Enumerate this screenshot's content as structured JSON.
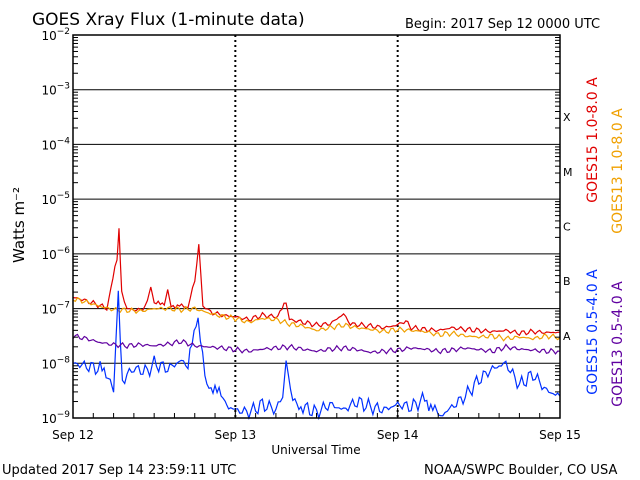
{
  "header": {
    "title": "GOES Xray Flux (1-minute data)",
    "begin": "Begin:  2017 Sep 12 0000 UTC"
  },
  "footer": {
    "updated": "Updated 2017 Sep 14 23:59:11 UTC",
    "source": "NOAA/SWPC Boulder, CO USA"
  },
  "chart_data": {
    "type": "line",
    "title": "GOES Xray Flux (1-minute data)",
    "xlabel": "Universal Time",
    "ylabel": "Watts m⁻²",
    "y_scale": "log",
    "ylim": [
      1e-09,
      0.01
    ],
    "xlim_hours": [
      0,
      72
    ],
    "x_ticks": [
      {
        "hour": 0,
        "label": "Sep 12"
      },
      {
        "hour": 24,
        "label": "Sep 13"
      },
      {
        "hour": 48,
        "label": "Sep 14"
      },
      {
        "hour": 72,
        "label": "Sep 15"
      }
    ],
    "y_ticks": [
      {
        "exp": -2,
        "label": "10-2"
      },
      {
        "exp": -3,
        "label": "10-3"
      },
      {
        "exp": -4,
        "label": "10-4"
      },
      {
        "exp": -5,
        "label": "10-5"
      },
      {
        "exp": -6,
        "label": "10-6"
      },
      {
        "exp": -7,
        "label": "10-7"
      },
      {
        "exp": -8,
        "label": "10-8"
      },
      {
        "exp": -9,
        "label": "10-9"
      }
    ],
    "flare_classes": [
      {
        "label": "X",
        "exp": -3.5
      },
      {
        "label": "M",
        "exp": -4.5
      },
      {
        "label": "C",
        "exp": -5.5
      },
      {
        "label": "B",
        "exp": -6.5
      },
      {
        "label": "A",
        "exp": -7.5
      }
    ],
    "legend": {
      "placement": "right"
    },
    "series": [
      {
        "name": "GOES15 1.0-8.0 A",
        "color": "#e00000",
        "points": [
          [
            0,
            -6.8
          ],
          [
            1,
            -6.82
          ],
          [
            2,
            -6.86
          ],
          [
            3,
            -6.9
          ],
          [
            4,
            -6.95
          ],
          [
            5,
            -6.99
          ],
          [
            6.5,
            -6.1
          ],
          [
            6.8,
            -5.55
          ],
          [
            7.2,
            -6.7
          ],
          [
            8,
            -7.0
          ],
          [
            9,
            -7.02
          ],
          [
            10,
            -7.03
          ],
          [
            11,
            -6.9
          ],
          [
            11.5,
            -6.65
          ],
          [
            12,
            -6.92
          ],
          [
            13.5,
            -6.9
          ],
          [
            14,
            -6.62
          ],
          [
            14.5,
            -6.95
          ],
          [
            17,
            -6.96
          ],
          [
            18,
            -6.5
          ],
          [
            18.6,
            -5.8
          ],
          [
            19.2,
            -6.95
          ],
          [
            20,
            -7.05
          ],
          [
            22,
            -7.12
          ],
          [
            24,
            -7.15
          ],
          [
            26,
            -7.2
          ],
          [
            28,
            -7.12
          ],
          [
            30,
            -7.15
          ],
          [
            31.5,
            -6.9
          ],
          [
            32,
            -7.2
          ],
          [
            34,
            -7.25
          ],
          [
            36,
            -7.3
          ],
          [
            38,
            -7.28
          ],
          [
            40,
            -7.1
          ],
          [
            41,
            -7.28
          ],
          [
            44,
            -7.32
          ],
          [
            46,
            -7.35
          ],
          [
            48,
            -7.3
          ],
          [
            49.5,
            -7.2
          ],
          [
            50,
            -7.35
          ],
          [
            52,
            -7.38
          ],
          [
            54,
            -7.4
          ],
          [
            56,
            -7.35
          ],
          [
            58,
            -7.38
          ],
          [
            60,
            -7.4
          ],
          [
            62,
            -7.42
          ],
          [
            64,
            -7.4
          ],
          [
            66,
            -7.45
          ],
          [
            68,
            -7.42
          ],
          [
            70,
            -7.44
          ],
          [
            72,
            -7.43
          ]
        ]
      },
      {
        "name": "GOES13 1.0-8.0 A",
        "color": "#f0a000",
        "points": [
          [
            0,
            -6.82
          ],
          [
            2,
            -6.88
          ],
          [
            4,
            -6.96
          ],
          [
            6,
            -7.02
          ],
          [
            8,
            -7.03
          ],
          [
            10,
            -7.05
          ],
          [
            12,
            -7.0
          ],
          [
            14,
            -7.0
          ],
          [
            16,
            -7.02
          ],
          [
            18,
            -7.0
          ],
          [
            20,
            -7.08
          ],
          [
            22,
            -7.14
          ],
          [
            24,
            -7.18
          ],
          [
            26,
            -7.25
          ],
          [
            28,
            -7.18
          ],
          [
            30,
            -7.2
          ],
          [
            32,
            -7.28
          ],
          [
            34,
            -7.32
          ],
          [
            36,
            -7.4
          ],
          [
            38,
            -7.35
          ],
          [
            40,
            -7.3
          ],
          [
            42,
            -7.35
          ],
          [
            44,
            -7.38
          ],
          [
            46,
            -7.42
          ],
          [
            48,
            -7.38
          ],
          [
            50,
            -7.4
          ],
          [
            52,
            -7.42
          ],
          [
            54,
            -7.48
          ],
          [
            56,
            -7.45
          ],
          [
            58,
            -7.5
          ],
          [
            60,
            -7.52
          ],
          [
            62,
            -7.5
          ],
          [
            64,
            -7.55
          ],
          [
            66,
            -7.52
          ],
          [
            68,
            -7.55
          ],
          [
            70,
            -7.5
          ],
          [
            72,
            -7.53
          ]
        ]
      },
      {
        "name": "GOES15 0.5-4.0 A",
        "color": "#0030ff",
        "points": [
          [
            0,
            -8.0
          ],
          [
            2,
            -8.05
          ],
          [
            4,
            -8.1
          ],
          [
            5.5,
            -8.25
          ],
          [
            6,
            -8.45
          ],
          [
            6.7,
            -6.8
          ],
          [
            7.3,
            -8.3
          ],
          [
            9,
            -8.1
          ],
          [
            11,
            -8.15
          ],
          [
            12,
            -8.0
          ],
          [
            14,
            -8.1
          ],
          [
            16,
            -7.95
          ],
          [
            17,
            -8.05
          ],
          [
            18.5,
            -7.1
          ],
          [
            19.5,
            -8.3
          ],
          [
            21,
            -8.5
          ],
          [
            22.5,
            -8.65
          ],
          [
            23,
            -8.8
          ],
          [
            24,
            -8.85
          ],
          [
            26,
            -8.9
          ],
          [
            28,
            -8.75
          ],
          [
            30,
            -8.85
          ],
          [
            31,
            -8.6
          ],
          [
            31.5,
            -7.95
          ],
          [
            32.5,
            -8.7
          ],
          [
            34,
            -8.8
          ],
          [
            36,
            -8.9
          ],
          [
            38,
            -8.75
          ],
          [
            40,
            -8.85
          ],
          [
            42,
            -8.7
          ],
          [
            44,
            -8.8
          ],
          [
            46,
            -8.85
          ],
          [
            48,
            -8.75
          ],
          [
            50,
            -8.8
          ],
          [
            52,
            -8.65
          ],
          [
            53.5,
            -8.85
          ],
          [
            54,
            -9.0
          ],
          [
            56,
            -8.8
          ],
          [
            58,
            -8.6
          ],
          [
            60,
            -8.3
          ],
          [
            62,
            -8.1
          ],
          [
            64,
            -8.0
          ],
          [
            66,
            -8.4
          ],
          [
            68,
            -8.2
          ],
          [
            70,
            -8.5
          ],
          [
            72,
            -8.6
          ]
        ]
      },
      {
        "name": "GOES13 0.5-4.0 A",
        "color": "#6000a0",
        "points": [
          [
            0,
            -7.5
          ],
          [
            2,
            -7.55
          ],
          [
            4,
            -7.62
          ],
          [
            6,
            -7.66
          ],
          [
            8,
            -7.68
          ],
          [
            10,
            -7.66
          ],
          [
            12,
            -7.68
          ],
          [
            14,
            -7.65
          ],
          [
            16,
            -7.6
          ],
          [
            18,
            -7.68
          ],
          [
            20,
            -7.7
          ],
          [
            22,
            -7.72
          ],
          [
            24,
            -7.75
          ],
          [
            26,
            -7.78
          ],
          [
            28,
            -7.74
          ],
          [
            30,
            -7.72
          ],
          [
            32,
            -7.7
          ],
          [
            34,
            -7.74
          ],
          [
            36,
            -7.78
          ],
          [
            38,
            -7.74
          ],
          [
            40,
            -7.72
          ],
          [
            42,
            -7.75
          ],
          [
            44,
            -7.8
          ],
          [
            46,
            -7.78
          ],
          [
            48,
            -7.76
          ],
          [
            50,
            -7.72
          ],
          [
            52,
            -7.74
          ],
          [
            54,
            -7.78
          ],
          [
            56,
            -7.76
          ],
          [
            58,
            -7.72
          ],
          [
            60,
            -7.75
          ],
          [
            62,
            -7.78
          ],
          [
            64,
            -7.7
          ],
          [
            66,
            -7.74
          ],
          [
            68,
            -7.76
          ],
          [
            70,
            -7.78
          ],
          [
            72,
            -7.78
          ]
        ]
      }
    ]
  }
}
